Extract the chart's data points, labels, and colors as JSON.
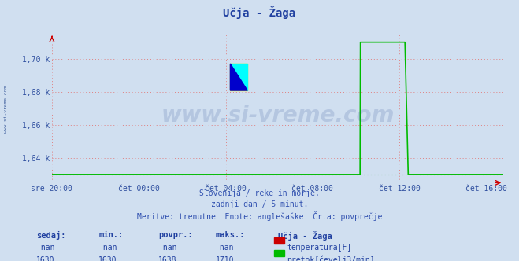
{
  "title": "Učja - Žaga",
  "bg_color": "#d0dff0",
  "plot_bg_color": "#d0dff0",
  "grid_color_red": "#e08080",
  "grid_color_green": "#60c060",
  "axis_color": "#3050a0",
  "title_color": "#2040a0",
  "watermark_text": "www.si-vreme.com",
  "watermark_color": "#1a3a8a",
  "watermark_alpha": 0.15,
  "subtitle_lines": [
    "Slovenija / reke in morje.",
    "zadnji dan / 5 minut.",
    "Meritve: trenutne  Enote: anglešaške  Črta: povprečje"
  ],
  "subtitle_color": "#3050b0",
  "x_tick_labels": [
    "sre 20:00",
    "čet 00:00",
    "čet 04:00",
    "čet 08:00",
    "čet 12:00",
    "čet 16:00"
  ],
  "x_tick_positions": [
    0,
    240,
    480,
    720,
    960,
    1200
  ],
  "ylim": [
    1625,
    1715
  ],
  "yticks": [
    1640,
    1660,
    1680,
    1700
  ],
  "ytick_labels": [
    "1,64 k",
    "1,66 k",
    "1,68 k",
    "1,70 k"
  ],
  "total_points": 1248,
  "flow_start_index": 852,
  "flow_peak_start": 864,
  "flow_peak_end": 975,
  "flow_drop_end": 985,
  "flow_base_value": 1630,
  "flow_peak_value": 1710,
  "flow_line_color": "#00bb00",
  "temp_line_color": "#cc0000",
  "legend_title": "Učja - Žaga",
  "legend_items": [
    {
      "label": "temperatura[F]",
      "color": "#cc0000"
    },
    {
      "label": "pretok[čevelj3/min]",
      "color": "#00bb00"
    }
  ],
  "table_headers": [
    "sedaj:",
    "min.:",
    "povpr.:",
    "maks.:"
  ],
  "table_rows": [
    [
      "-nan",
      "-nan",
      "-nan",
      "-nan"
    ],
    [
      "1630",
      "1630",
      "1638",
      "1710"
    ]
  ],
  "table_color": "#2040a0",
  "left_label": "www.si-vreme.com",
  "left_label_color": "#3a5a9a"
}
